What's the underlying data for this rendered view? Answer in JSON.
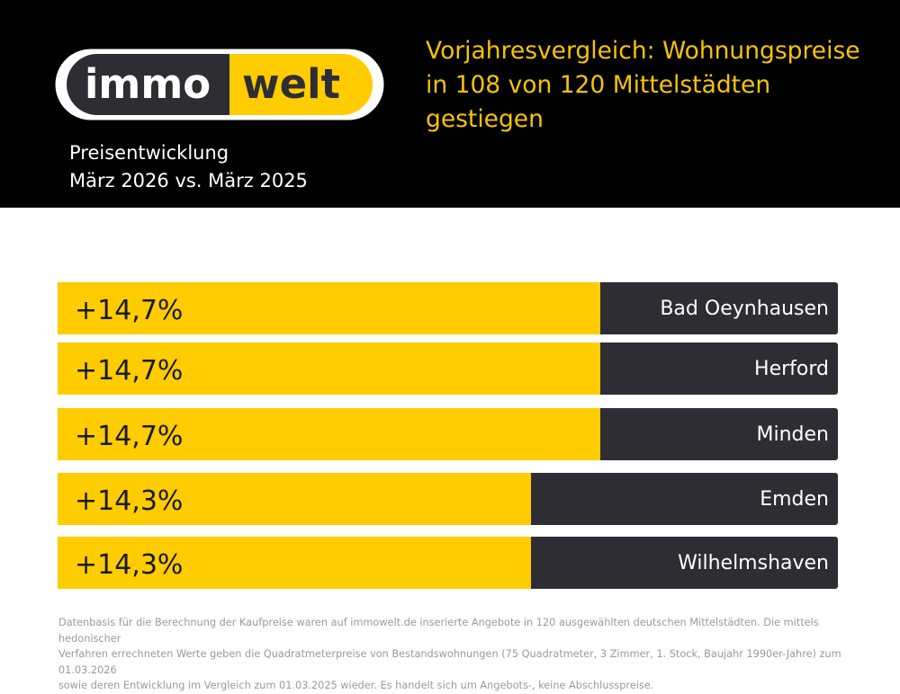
{
  "header": {
    "brand_left": "immo",
    "brand_right": "welt",
    "subtitle_line1": "Preisentwicklung",
    "subtitle_line2": "März 2026 vs. März 2025",
    "title_line1": "Vorjahresvergleich: Wohnungspreise",
    "title_line2": "in 108 von 120 Mittelstädten",
    "title_line3": "gestiegen"
  },
  "colors": {
    "bar_fill": "#FFCC00",
    "label_box": "#2E2D33",
    "header_bg": "#000000",
    "title_yellow": "#F5C400"
  },
  "chart_data": {
    "type": "bar",
    "orientation": "horizontal",
    "categories": [
      "Bad Oeynhausen",
      "Herford",
      "Minden",
      "Emden",
      "Wilhelmshaven"
    ],
    "values": [
      14.7,
      14.7,
      14.7,
      14.3,
      14.3
    ],
    "value_labels": [
      "+14,7%",
      "+14,7%",
      "+14,7%",
      "+14,3%",
      "+14,3%"
    ],
    "title": "Vorjahresvergleich: Wohnungspreise in 108 von 120 Mittelstädten gestiegen"
  },
  "footnote": {
    "line1": "Datenbasis für die Berechnung der Kaufpreise waren auf immowelt.de inserierte Angebote in 120 ausgewählten deutschen Mittelstädten. Die mittels hedonischer",
    "line2": "Verfahren errechneten Werte geben die Quadratmeterpreise von Bestandswohnungen (75 Quadratmeter, 3 Zimmer, 1. Stock, Baujahr 1990er-Jahre) zum 01.03.2026",
    "line3": "sowie deren Entwicklung im Vergleich zum 01.03.2025 wieder. Es handelt sich um Angebots-, keine Abschlusspreise."
  }
}
